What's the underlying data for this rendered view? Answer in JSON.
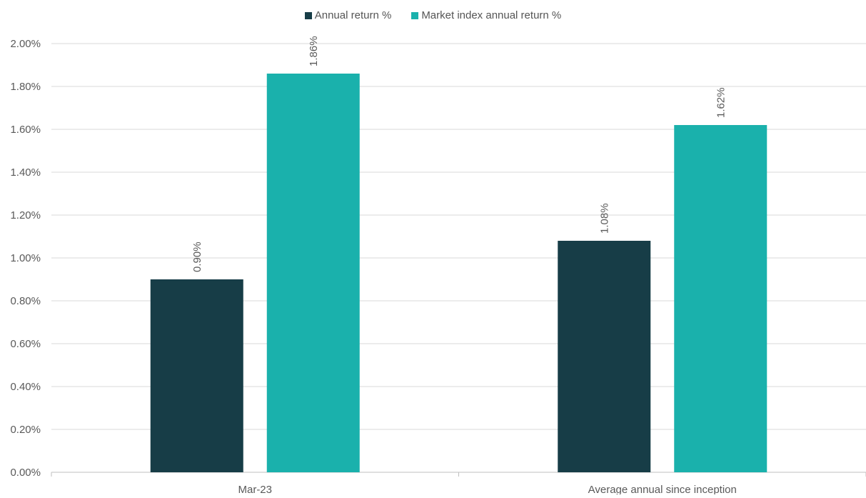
{
  "chart_data": {
    "type": "bar",
    "categories": [
      "Mar-23",
      "Average annual since inception"
    ],
    "series": [
      {
        "name": "Annual return %",
        "values": [
          0.9,
          1.08
        ],
        "labels": [
          "0.90%",
          "1.08%"
        ],
        "color": "#173d47"
      },
      {
        "name": "Market index annual return %",
        "values": [
          1.86,
          1.62
        ],
        "labels": [
          "1.86%",
          "1.62%"
        ],
        "color": "#1ab1ac"
      }
    ],
    "ylim": [
      0,
      2.0
    ],
    "yticks": [
      "0.00%",
      "0.20%",
      "0.40%",
      "0.60%",
      "0.80%",
      "1.00%",
      "1.20%",
      "1.40%",
      "1.60%",
      "1.80%",
      "2.00%"
    ],
    "ytick_values": [
      0,
      0.2,
      0.4,
      0.6,
      0.8,
      1.0,
      1.2,
      1.4,
      1.6,
      1.8,
      2.0
    ],
    "grid": true,
    "legend_position": "top-center",
    "data_labels_rotated": true
  }
}
